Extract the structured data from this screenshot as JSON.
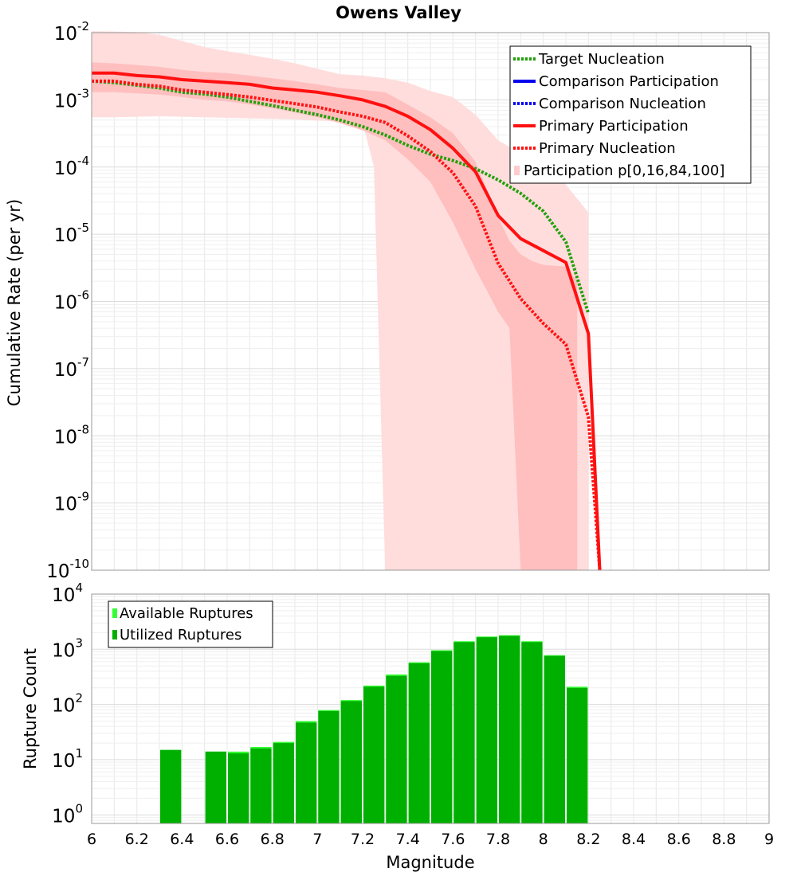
{
  "chart_data": [
    {
      "type": "line",
      "title": "Owens Valley",
      "ylabel": "Cumulative Rate (per yr)",
      "xlabel": "",
      "yscale": "log",
      "xlim": [
        6,
        9
      ],
      "ylim": [
        1e-10,
        0.01
      ],
      "grid": true,
      "legend_position": "top-right",
      "y_ticks": [
        {
          "base": "10",
          "exp": "-2"
        },
        {
          "base": "10",
          "exp": "-3"
        },
        {
          "base": "10",
          "exp": "-4"
        },
        {
          "base": "10",
          "exp": "-5"
        },
        {
          "base": "10",
          "exp": "-6"
        },
        {
          "base": "10",
          "exp": "-7"
        },
        {
          "base": "10",
          "exp": "-8"
        },
        {
          "base": "10",
          "exp": "-9"
        },
        {
          "base": "10",
          "exp": "-10"
        }
      ],
      "legend": [
        {
          "label": "Target Nucleation",
          "color": "#22a00a",
          "style": "dotted"
        },
        {
          "label": "Comparison Participation",
          "color": "#0000ee",
          "style": "solid"
        },
        {
          "label": "Comparison Nucleation",
          "color": "#0000ee",
          "style": "dotted"
        },
        {
          "label": "Primary Participation",
          "color": "#ff1010",
          "style": "solid"
        },
        {
          "label": "Primary Nucleation",
          "color": "#ff1010",
          "style": "dotted"
        },
        {
          "label": "Participation p[0,16,84,100]",
          "color": "#ffcccc",
          "style": "band"
        }
      ],
      "bands": [
        {
          "name": "p0-p100",
          "color": "#ffdddd",
          "x": [
            6.0,
            6.1,
            6.2,
            6.3,
            6.4,
            6.5,
            6.6,
            6.7,
            6.8,
            6.9,
            7.0,
            7.1,
            7.2,
            7.25,
            7.3,
            7.4,
            7.5,
            7.6,
            7.7,
            7.8,
            7.9,
            8.0,
            8.1,
            8.2
          ],
          "upper": [
            0.0105,
            0.0104,
            0.0102,
            0.0093,
            0.0075,
            0.0061,
            0.0053,
            0.0047,
            0.0041,
            0.0035,
            0.0029,
            0.0024,
            0.0023,
            0.0022,
            0.0021,
            0.0018,
            0.00135,
            0.0011,
            0.0006,
            0.00025,
            0.00016,
            0.00011,
            5.5e-05,
            2.1e-05
          ],
          "lower": [
            0.00055,
            0.00055,
            0.00056,
            0.00057,
            0.00056,
            0.00055,
            0.00054,
            0.00053,
            0.00052,
            0.00051,
            0.00049,
            0.00048,
            0.00046,
            0.0001,
            1e-10,
            1e-10,
            1e-10,
            1e-10,
            1e-10,
            1e-10,
            1e-10,
            1e-10,
            1e-10,
            1e-10
          ]
        },
        {
          "name": "p16-p84",
          "color": "#ffbfbf",
          "x": [
            6.0,
            6.1,
            6.2,
            6.3,
            6.4,
            6.5,
            6.6,
            6.7,
            6.8,
            6.9,
            7.0,
            7.1,
            7.2,
            7.3,
            7.4,
            7.5,
            7.6,
            7.7,
            7.8,
            7.85,
            7.9,
            7.95,
            8.0,
            8.1,
            8.15
          ],
          "upper": [
            0.0036,
            0.0035,
            0.0033,
            0.0031,
            0.0028,
            0.0026,
            0.0025,
            0.0023,
            0.0021,
            0.0019,
            0.0017,
            0.0015,
            0.0014,
            0.0013,
            0.00085,
            0.00055,
            0.00032,
            0.00012,
            1.8e-05,
            8e-06,
            5e-06,
            4e-06,
            3.5e-06,
            3.3e-06,
            2e-06
          ],
          "lower": [
            0.0013,
            0.0013,
            0.00125,
            0.0012,
            0.0011,
            0.001,
            0.00095,
            0.00085,
            0.00075,
            0.00065,
            0.00055,
            0.00045,
            0.00035,
            0.00025,
            0.00013,
            6e-05,
            1.5e-05,
            3e-06,
            7e-07,
            4e-07,
            1e-10,
            1e-10,
            1e-10,
            1e-10,
            1e-10
          ]
        }
      ],
      "series": [
        {
          "name": "Target Nucleation",
          "color": "#22a00a",
          "style": "dotted",
          "x": [
            6.0,
            6.1,
            6.2,
            6.3,
            6.4,
            6.5,
            6.6,
            6.7,
            6.8,
            6.9,
            7.0,
            7.1,
            7.2,
            7.3,
            7.4,
            7.5,
            7.6,
            7.7,
            7.8,
            7.9,
            8.0,
            8.1,
            8.2
          ],
          "y": [
            0.0019,
            0.0018,
            0.00165,
            0.0015,
            0.0013,
            0.00122,
            0.0011,
            0.00095,
            0.00082,
            0.0007,
            0.0006,
            0.0005,
            0.0004,
            0.0003,
            0.00021,
            0.000155,
            0.000125,
            9.46e-05,
            6.44e-05,
            4.06e-05,
            2.2e-05,
            7.7e-06,
            6.6e-07
          ]
        },
        {
          "name": "Primary Participation",
          "color": "#ff1010",
          "style": "solid",
          "x": [
            6.0,
            6.1,
            6.2,
            6.3,
            6.4,
            6.5,
            6.6,
            6.7,
            6.8,
            6.9,
            7.0,
            7.1,
            7.2,
            7.3,
            7.4,
            7.5,
            7.6,
            7.7,
            7.8,
            7.9,
            8.0,
            8.1,
            8.2,
            8.25
          ],
          "y": [
            0.0025,
            0.0025,
            0.0023,
            0.0022,
            0.002,
            0.0019,
            0.0018,
            0.0017,
            0.0015,
            0.0014,
            0.0013,
            0.00115,
            0.001,
            0.0008,
            0.00057,
            0.00036,
            0.00019,
            8.5e-05,
            1.9e-05,
            8.6e-06,
            5.7e-06,
            3.8e-06,
            3.3e-07,
            1e-10
          ]
        },
        {
          "name": "Primary Nucleation",
          "color": "#ff1010",
          "style": "dotted",
          "x": [
            6.0,
            6.1,
            6.2,
            6.3,
            6.4,
            6.5,
            6.6,
            6.7,
            6.8,
            6.9,
            7.0,
            7.1,
            7.2,
            7.3,
            7.4,
            7.5,
            7.6,
            7.7,
            7.8,
            7.9,
            8.0,
            8.1,
            8.2,
            8.25
          ],
          "y": [
            0.0019,
            0.0019,
            0.0017,
            0.0016,
            0.0014,
            0.0013,
            0.0012,
            0.0011,
            0.00098,
            0.00088,
            0.00078,
            0.00066,
            0.00057,
            0.00046,
            0.00029,
            0.00017,
            8.2e-05,
            2.6e-05,
            3.7e-06,
            1.1e-06,
            4.7e-07,
            2.3e-07,
            1.9e-08,
            1e-10
          ]
        }
      ]
    },
    {
      "type": "bar",
      "ylabel": "Rupture Count",
      "xlabel": "Magnitude",
      "yscale": "log",
      "xlim": [
        6,
        9
      ],
      "ylim": [
        0.7,
        10000
      ],
      "grid": true,
      "legend_position": "top-left",
      "y_ticks": [
        {
          "base": "10",
          "exp": "4"
        },
        {
          "base": "10",
          "exp": "3"
        },
        {
          "base": "10",
          "exp": "2"
        },
        {
          "base": "10",
          "exp": "1"
        },
        {
          "base": "10",
          "exp": "0"
        }
      ],
      "x_ticks": [
        "6",
        "6.2",
        "6.4",
        "6.6",
        "6.8",
        "7",
        "7.2",
        "7.4",
        "7.6",
        "7.8",
        "8",
        "8.2",
        "8.4",
        "8.6",
        "8.8",
        "9"
      ],
      "legend": [
        {
          "label": "Available Ruptures",
          "color": "#33ff33"
        },
        {
          "label": "Utilized Ruptures",
          "color": "#00b000"
        }
      ],
      "x": [
        6.35,
        6.55,
        6.65,
        6.75,
        6.85,
        6.95,
        7.05,
        7.15,
        7.25,
        7.35,
        7.45,
        7.55,
        7.65,
        7.75,
        7.85,
        7.95,
        8.05,
        8.15
      ],
      "series": [
        {
          "name": "Available Ruptures",
          "color": "#33ff33",
          "values": [
            15,
            14,
            14,
            17,
            21,
            50,
            79,
            120,
            220,
            350,
            580,
            960,
            1400,
            1700,
            1800,
            1400,
            780,
            210
          ]
        },
        {
          "name": "Utilized Ruptures",
          "color": "#00b000",
          "values": [
            15,
            14,
            13,
            16,
            20,
            47,
            76,
            115,
            210,
            330,
            560,
            930,
            1350,
            1650,
            1750,
            1350,
            760,
            200
          ]
        }
      ]
    }
  ]
}
